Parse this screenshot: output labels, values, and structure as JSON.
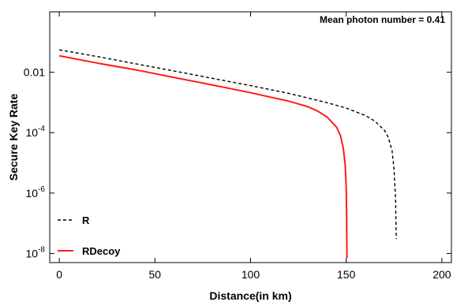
{
  "chart_data": {
    "type": "line",
    "title": "",
    "annotation": "Mean photon number = 0.41",
    "xlabel": "Distance(in km)",
    "ylabel": "Secure Key Rate",
    "xlim": [
      -5,
      205
    ],
    "ylim": [
      5e-09,
      1
    ],
    "y_scale": "log",
    "grid": false,
    "legend_position": "bottom-left",
    "x_ticks": [
      {
        "value": 0,
        "label": "0"
      },
      {
        "value": 50,
        "label": "50"
      },
      {
        "value": 100,
        "label": "100"
      },
      {
        "value": 150,
        "label": "150"
      },
      {
        "value": 200,
        "label": "200"
      }
    ],
    "y_ticks": [
      {
        "value": 0.01,
        "label": "0.01",
        "base": "",
        "exp": ""
      },
      {
        "value": 0.0001,
        "label": "",
        "base": "10",
        "exp": "-4"
      },
      {
        "value": 1e-06,
        "label": "",
        "base": "10",
        "exp": "-6"
      },
      {
        "value": 1e-08,
        "label": "",
        "base": "10",
        "exp": "-8"
      }
    ],
    "series": [
      {
        "name": "R",
        "color": "#000000",
        "dash": "dashed",
        "x": [
          0,
          20,
          40,
          60,
          80,
          100,
          120,
          140,
          150,
          160,
          165,
          170,
          172,
          174,
          175,
          175.8,
          176,
          176.2
        ],
        "y": [
          0.055,
          0.033,
          0.019,
          0.011,
          0.0063,
          0.0036,
          0.002,
          0.00098,
          0.00065,
          0.00037,
          0.00024,
          0.00012,
          7e-05,
          2.5e-05,
          6e-06,
          7e-07,
          1.2e-07,
          3e-08
        ]
      },
      {
        "name": "RDecoy",
        "color": "#ff1a1a",
        "dash": "solid",
        "x": [
          0,
          20,
          40,
          60,
          80,
          100,
          120,
          130,
          135,
          140,
          145,
          147,
          148.5,
          149.5,
          150,
          150.2,
          150.3,
          150.4
        ],
        "y": [
          0.035,
          0.02,
          0.012,
          0.0067,
          0.0038,
          0.0021,
          0.0011,
          0.00072,
          0.00052,
          0.00033,
          0.00015,
          8e-05,
          3e-05,
          8e-06,
          1.5e-06,
          2e-07,
          3e-08,
          7e-09
        ]
      }
    ]
  }
}
